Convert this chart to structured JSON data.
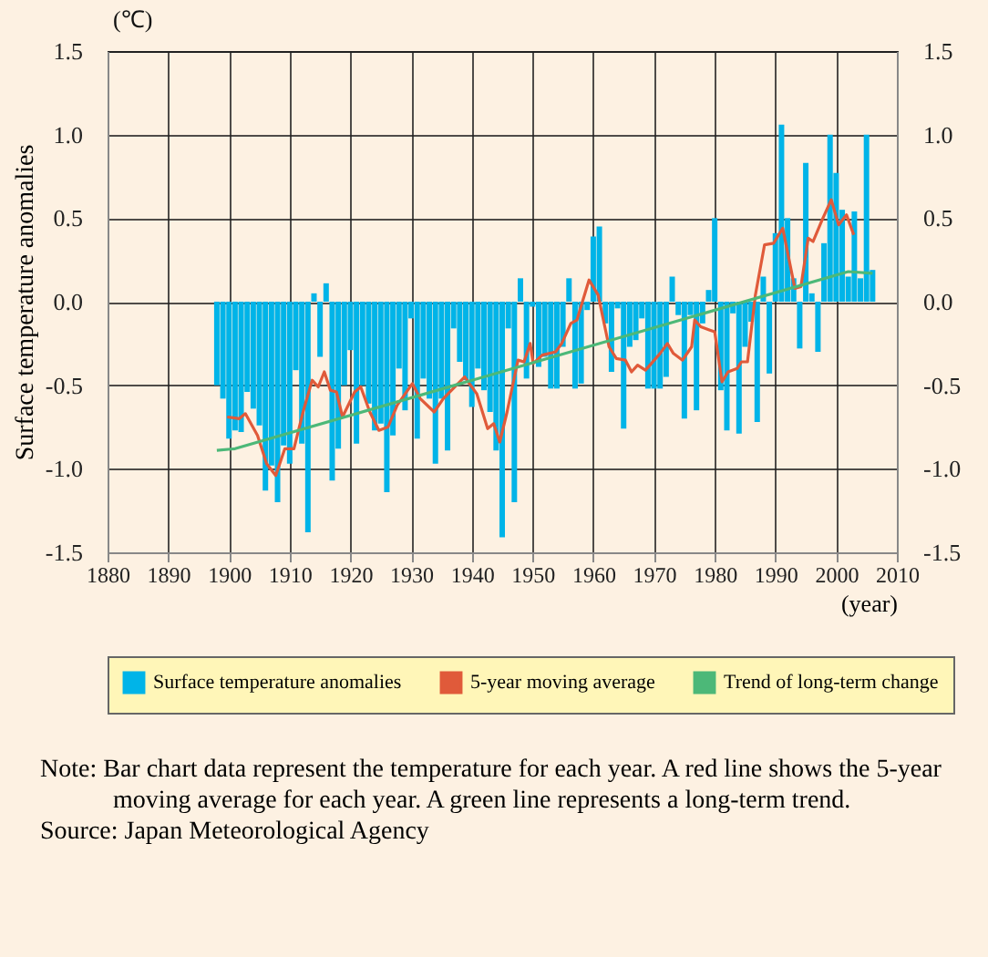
{
  "chart_data": {
    "type": "bar",
    "xlabel": "(year)",
    "ylabel": "Surface temperature anomalies",
    "annotations": [
      "(℃)",
      "Note: Bar chart data represent the temperature for each year. A red line shows the 5-year moving average for each year. A green line represents a long-term trend.",
      "Source: Japan Meteorological Agency"
    ],
    "x": [
      1898,
      1899,
      1900,
      1901,
      1902,
      1903,
      1904,
      1905,
      1906,
      1907,
      1908,
      1909,
      1910,
      1911,
      1912,
      1913,
      1914,
      1915,
      1916,
      1917,
      1918,
      1919,
      1920,
      1921,
      1922,
      1923,
      1924,
      1925,
      1926,
      1927,
      1928,
      1929,
      1930,
      1931,
      1932,
      1933,
      1934,
      1935,
      1936,
      1937,
      1938,
      1939,
      1940,
      1941,
      1942,
      1943,
      1944,
      1945,
      1946,
      1947,
      1948,
      1949,
      1950,
      1951,
      1952,
      1953,
      1954,
      1955,
      1956,
      1957,
      1958,
      1959,
      1960,
      1961,
      1962,
      1963,
      1964,
      1965,
      1966,
      1967,
      1968,
      1969,
      1970,
      1971,
      1972,
      1973,
      1974,
      1975,
      1976,
      1977,
      1978,
      1979,
      1980,
      1981,
      1982,
      1983,
      1984,
      1985,
      1986,
      1987,
      1988,
      1989,
      1990,
      1991,
      1992,
      1993,
      1994,
      1995,
      1996,
      1997,
      1998,
      1999,
      2000,
      2001,
      2002,
      2003,
      2004,
      2005,
      2006
    ],
    "series": [
      {
        "name": "Surface temperature anomalies",
        "color": "#00b4e8",
        "values": [
          -0.5,
          -0.58,
          -0.82,
          -0.77,
          -0.78,
          -0.54,
          -0.64,
          -0.74,
          -1.13,
          -0.98,
          -1.2,
          -0.86,
          -0.97,
          -0.41,
          -0.85,
          -1.38,
          0.05,
          -0.33,
          0.11,
          -1.07,
          -0.88,
          -0.5,
          -0.29,
          -0.85,
          -0.5,
          -0.61,
          -0.77,
          -0.73,
          -1.14,
          -0.8,
          -0.4,
          -0.65,
          -0.1,
          -0.82,
          -0.46,
          -0.58,
          -0.97,
          -0.58,
          -0.89,
          -0.16,
          -0.36,
          -0.47,
          -0.63,
          -0.4,
          -0.53,
          -0.66,
          -0.89,
          -1.41,
          -0.16,
          -1.2,
          0.14,
          -0.46,
          -0.03,
          -0.39,
          -0.33,
          -0.52,
          -0.52,
          -0.27,
          0.14,
          -0.52,
          -0.49,
          -0.05,
          0.39,
          0.45,
          -0.13,
          -0.42,
          -0.04,
          -0.76,
          -0.27,
          -0.23,
          -0.1,
          -0.52,
          -0.52,
          -0.52,
          -0.45,
          0.15,
          -0.08,
          -0.7,
          -0.08,
          -0.65,
          -0.13,
          0.07,
          0.5,
          -0.53,
          -0.77,
          -0.07,
          -0.79,
          -0.27,
          -0.12,
          -0.72,
          0.15,
          -0.43,
          0.41,
          1.06,
          0.5,
          0.14,
          -0.28,
          0.83,
          0.05,
          -0.3,
          0.35,
          1.0,
          0.77,
          0.55,
          0.15,
          0.54,
          0.14,
          1.0,
          0.19
        ]
      },
      {
        "name": "5-year moving average",
        "type": "line",
        "color": "#e05a3a",
        "x": [
          1899.7,
          1901.7,
          1902.7,
          1904.7,
          1906.2,
          1907.7,
          1909.2,
          1910.7,
          1912.2,
          1913.7,
          1914.7,
          1915.7,
          1916.7,
          1917.7,
          1918.7,
          1920.7,
          1921.7,
          1923.2,
          1924.7,
          1926.2,
          1927.7,
          1930.2,
          1931.5,
          1933.8,
          1935.3,
          1938.8,
          1940.8,
          1942.6,
          1943.6,
          1944.6,
          1945.8,
          1947.6,
          1948.6,
          1949.6,
          1950.1,
          1951.6,
          1953.8,
          1954.8,
          1956.3,
          1957.3,
          1959.3,
          1960.8,
          1962.6,
          1963.8,
          1965.3,
          1966.3,
          1967.3,
          1968.6,
          1971.0,
          1972.2,
          1973.2,
          1974.7,
          1976.2,
          1976.7,
          1977.7,
          1979.2,
          1980.0,
          1981.2,
          1982.2,
          1983.7,
          1984.4,
          1985.4,
          1986.7,
          1988.2,
          1989.7,
          1991.2,
          1993.2,
          1994.2,
          1995.4,
          1996.2,
          1997.7,
          1999.2,
          2000.4,
          2001.7,
          2002.9
        ],
        "values": [
          -0.69,
          -0.7,
          -0.67,
          -0.8,
          -0.97,
          -1.04,
          -0.88,
          -0.88,
          -0.66,
          -0.47,
          -0.51,
          -0.42,
          -0.53,
          -0.54,
          -0.69,
          -0.54,
          -0.51,
          -0.66,
          -0.77,
          -0.75,
          -0.62,
          -0.49,
          -0.58,
          -0.66,
          -0.58,
          -0.45,
          -0.55,
          -0.76,
          -0.73,
          -0.84,
          -0.66,
          -0.35,
          -0.36,
          -0.25,
          -0.37,
          -0.32,
          -0.3,
          -0.25,
          -0.13,
          -0.11,
          0.13,
          0.04,
          -0.27,
          -0.34,
          -0.35,
          -0.42,
          -0.38,
          -0.41,
          -0.31,
          -0.25,
          -0.31,
          -0.35,
          -0.27,
          -0.11,
          -0.15,
          -0.17,
          -0.18,
          -0.48,
          -0.42,
          -0.4,
          -0.36,
          -0.36,
          0.04,
          0.34,
          0.35,
          0.44,
          0.08,
          0.09,
          0.38,
          0.36,
          0.49,
          0.61,
          0.46,
          0.52,
          0.4
        ]
      },
      {
        "name": "Trend of long-term change",
        "type": "line",
        "color": "#4cb878",
        "x": [
          1898,
          1901,
          2002,
          2006
        ],
        "values": [
          -0.89,
          -0.88,
          0.18,
          0.17
        ]
      }
    ],
    "xlim": [
      1880,
      2010
    ],
    "xticks": [
      1880,
      1890,
      1900,
      1910,
      1920,
      1930,
      1940,
      1950,
      1960,
      1970,
      1980,
      1990,
      2000,
      2010
    ],
    "ylim": [
      -1.5,
      1.5
    ],
    "yticks": [
      1.5,
      {
        "value": 1,
        "label": "1.0"
      },
      0.5,
      {
        "value": 0,
        "label": "0.0"
      },
      -0.5,
      {
        "value": -1,
        "label": "-1.0"
      },
      -1.5
    ],
    "y2lim": [
      -1.5,
      1.5
    ],
    "y2ticks": [
      1.5,
      {
        "value": 1,
        "label": "1.0"
      },
      0.5,
      {
        "value": 0,
        "label": "0.0"
      },
      -0.5,
      {
        "value": -1,
        "label": "-1.0"
      },
      -1.5
    ],
    "grid": true,
    "legend": "bottom"
  }
}
